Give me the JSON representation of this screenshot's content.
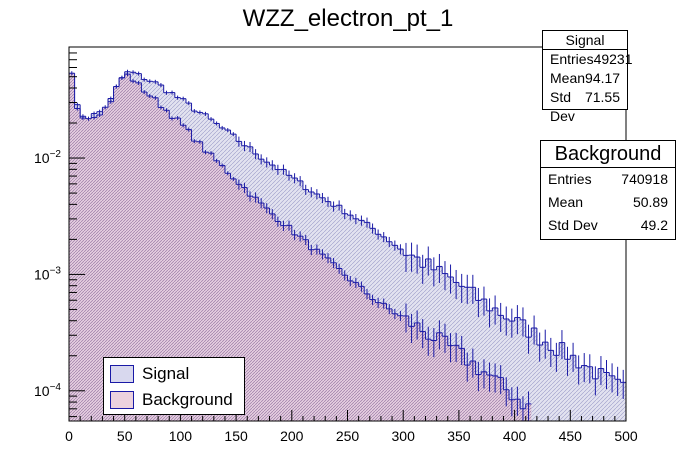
{
  "chart_data": {
    "type": "histogram",
    "title": "WZZ_electron_pt_1",
    "xlabel": "",
    "ylabel": "",
    "xlim": [
      0,
      500
    ],
    "ylim": [
      5.5e-05,
      0.09
    ],
    "yscale": "log",
    "bin_width": 5,
    "x_ticks": [
      0,
      50,
      100,
      150,
      200,
      250,
      300,
      350,
      400,
      450,
      500
    ],
    "y_ticks": [
      {
        "value": 0.01,
        "label": "10^-2"
      },
      {
        "value": 0.001,
        "label": "10^-3"
      },
      {
        "value": 0.0001,
        "label": "10^-4"
      }
    ],
    "legend_position": "bottom-left",
    "series": [
      {
        "name": "Signal",
        "color": "#1a1aa6",
        "fill": "#c8c8e6",
        "hatch": "light",
        "anchors": [
          [
            0,
            0.09
          ],
          [
            5,
            0.03
          ],
          [
            10,
            0.025
          ],
          [
            15,
            0.022
          ],
          [
            25,
            0.024
          ],
          [
            35,
            0.028
          ],
          [
            45,
            0.045
          ],
          [
            50,
            0.053
          ],
          [
            55,
            0.055
          ],
          [
            65,
            0.05
          ],
          [
            80,
            0.043
          ],
          [
            100,
            0.032
          ],
          [
            125,
            0.022
          ],
          [
            150,
            0.0147
          ],
          [
            175,
            0.0098
          ],
          [
            200,
            0.0068
          ],
          [
            225,
            0.0047
          ],
          [
            250,
            0.0034
          ],
          [
            275,
            0.0024
          ],
          [
            300,
            0.0016
          ],
          [
            325,
            0.00115
          ],
          [
            350,
            0.00082
          ],
          [
            375,
            0.00055
          ],
          [
            400,
            0.0004
          ],
          [
            425,
            0.00028
          ],
          [
            450,
            0.0002
          ],
          [
            475,
            0.00014
          ],
          [
            500,
            0.0001
          ]
        ]
      },
      {
        "name": "Background",
        "color": "#1a1aa6",
        "fill": "#e8c8d6",
        "hatch": "dense",
        "anchors": [
          [
            0,
            0.09
          ],
          [
            5,
            0.03
          ],
          [
            10,
            0.025
          ],
          [
            15,
            0.022
          ],
          [
            25,
            0.024
          ],
          [
            35,
            0.028
          ],
          [
            45,
            0.045
          ],
          [
            50,
            0.053
          ],
          [
            55,
            0.05
          ],
          [
            65,
            0.04
          ],
          [
            80,
            0.03
          ],
          [
            100,
            0.02
          ],
          [
            125,
            0.011
          ],
          [
            150,
            0.0065
          ],
          [
            175,
            0.0038
          ],
          [
            200,
            0.0024
          ],
          [
            225,
            0.0015
          ],
          [
            250,
            0.00095
          ],
          [
            275,
            0.0006
          ],
          [
            300,
            0.00042
          ],
          [
            325,
            0.0003
          ],
          [
            350,
            0.00021
          ],
          [
            375,
            0.00014
          ],
          [
            400,
            9e-05
          ],
          [
            415,
            7e-05
          ],
          [
            420,
            0.0
          ]
        ]
      }
    ],
    "stats_boxes": [
      {
        "name": "Signal",
        "rows": [
          {
            "label": "Entries",
            "value": "49231"
          },
          {
            "label": "Mean",
            "value": "94.17"
          },
          {
            "label": "Std Dev",
            "value": "71.55"
          }
        ]
      },
      {
        "name": "Background",
        "rows": [
          {
            "label": "Entries",
            "value": "740918"
          },
          {
            "label": "Mean",
            "value": "50.89"
          },
          {
            "label": "Std Dev",
            "value": "49.2"
          }
        ]
      }
    ]
  },
  "legend": {
    "signal_label": "Signal",
    "background_label": "Background"
  }
}
